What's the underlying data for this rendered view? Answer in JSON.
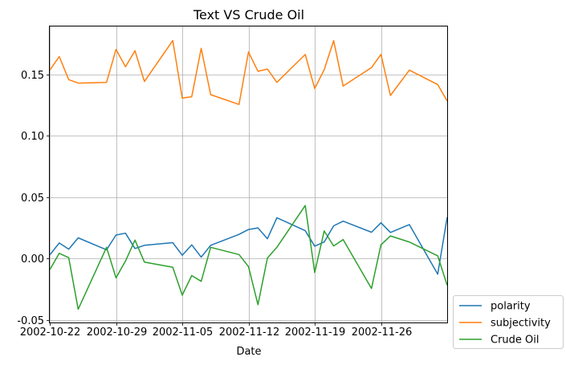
{
  "chart_data": {
    "type": "line",
    "title": "Text VS Crude Oil",
    "xlabel": "Date",
    "ylabel": "",
    "x": [
      "2002-10-22",
      "2002-10-23",
      "2002-10-24",
      "2002-10-25",
      "2002-10-28",
      "2002-10-29",
      "2002-10-30",
      "2002-10-31",
      "2002-11-01",
      "2002-11-04",
      "2002-11-05",
      "2002-11-06",
      "2002-11-07",
      "2002-11-08",
      "2002-11-11",
      "2002-11-12",
      "2002-11-13",
      "2002-11-14",
      "2002-11-15",
      "2002-11-18",
      "2002-11-19",
      "2002-11-20",
      "2002-11-21",
      "2002-11-22",
      "2002-11-25",
      "2002-11-26",
      "2002-11-27",
      "2002-11-29",
      "2002-12-02",
      "2002-12-03"
    ],
    "xlim": [
      "2002-10-22",
      "2002-12-03"
    ],
    "xticks": [
      "2002-10-22",
      "2002-10-29",
      "2002-11-05",
      "2002-11-12",
      "2002-11-19",
      "2002-11-26"
    ],
    "ylim": [
      -0.052,
      0.189
    ],
    "yticks": [
      -0.05,
      0.0,
      0.05,
      0.1,
      0.15
    ],
    "ytick_labels": [
      "-0.05",
      "0.00",
      "0.05",
      "0.10",
      "0.15"
    ],
    "grid": true,
    "legend_position": "outside-bottom-right",
    "series": [
      {
        "name": "polarity",
        "color": "#1f77b4",
        "values": [
          0.003,
          0.0127,
          0.0077,
          0.0169,
          0.0072,
          0.0192,
          0.0207,
          0.0082,
          0.0108,
          0.013,
          0.0027,
          0.0112,
          0.0012,
          0.0108,
          0.0197,
          0.0237,
          0.025,
          0.0162,
          0.0333,
          0.0227,
          0.0102,
          0.0135,
          0.0267,
          0.0305,
          0.0215,
          0.0292,
          0.0213,
          0.0277,
          -0.0127,
          0.0337
        ]
      },
      {
        "name": "subjectivity",
        "color": "#ff7f0e",
        "values": [
          0.1535,
          0.1645,
          0.1457,
          0.1429,
          0.1435,
          0.1703,
          0.1562,
          0.1693,
          0.1442,
          0.1775,
          0.1307,
          0.1318,
          0.1712,
          0.1335,
          0.1255,
          0.1682,
          0.1525,
          0.1543,
          0.1435,
          0.1662,
          0.1385,
          0.1538,
          0.1775,
          0.1405,
          0.1555,
          0.1663,
          0.1328,
          0.1535,
          0.1417,
          0.1283
        ]
      },
      {
        "name": "Crude Oil",
        "color": "#2ca02c",
        "values": [
          -0.009,
          0.0043,
          0.0008,
          -0.0412,
          0.0092,
          -0.0157,
          -0.002,
          0.0151,
          -0.0028,
          -0.007,
          -0.0297,
          -0.0138,
          -0.0185,
          0.0092,
          0.0033,
          -0.0065,
          -0.0375,
          0.0005,
          0.0092,
          0.0432,
          -0.0113,
          0.0225,
          0.0103,
          0.0155,
          -0.0243,
          0.0112,
          0.0185,
          0.0135,
          0.0023,
          -0.0217
        ]
      }
    ]
  }
}
